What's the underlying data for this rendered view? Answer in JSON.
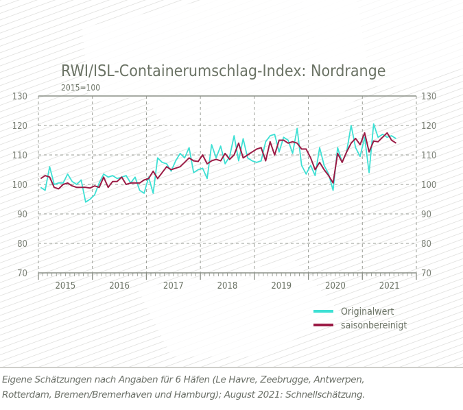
{
  "chart_data": {
    "type": "line",
    "title": "RWI/ISL-Containerumschlag-Index: Nordrange",
    "subtitle": "2015=100",
    "ylim": [
      70,
      130
    ],
    "yticks": [
      70,
      80,
      90,
      100,
      110,
      120,
      130
    ],
    "x_categories": [
      "2015",
      "2016",
      "2017",
      "2018",
      "2019",
      "2020",
      "2021"
    ],
    "x_range": [
      "2015-01",
      "2021-12"
    ],
    "frequency": "monthly",
    "grid": true,
    "legend_placement": "bottom-right",
    "series": [
      {
        "name": "Originalwert",
        "color": "#3ee0d4",
        "start": "2015-01",
        "values": [
          99,
          98,
          106,
          100,
          100.5,
          100.5,
          103.5,
          101,
          100,
          101.5,
          94,
          95,
          96.5,
          100.5,
          103.5,
          102.5,
          103,
          102,
          102.5,
          103,
          100.5,
          102.5,
          98,
          97,
          102.5,
          97,
          109,
          107.5,
          107,
          104.5,
          108,
          110.5,
          109,
          112.5,
          104,
          105,
          105.5,
          102,
          113.5,
          109,
          113,
          107,
          109.5,
          116.5,
          108,
          115.5,
          109,
          108,
          107.5,
          108,
          114.5,
          116.5,
          117,
          111,
          116,
          115,
          110.5,
          119,
          106.5,
          103.5,
          106.5,
          103,
          112.5,
          106.5,
          103.5,
          98,
          112.5,
          107.5,
          111,
          120,
          112.5,
          109.5,
          116,
          104,
          120.5,
          116,
          117,
          116,
          116.5,
          115.5
        ]
      },
      {
        "name": "saisonbereinigt",
        "color": "#9b1b45",
        "start": "2015-01",
        "values": [
          102,
          103,
          102.5,
          99,
          98.5,
          100,
          100.5,
          99.5,
          99,
          99,
          99,
          98.8,
          99.5,
          99,
          102.5,
          99,
          101,
          101,
          102.5,
          100,
          100.5,
          100.5,
          100.5,
          101.5,
          102,
          104.5,
          102,
          104,
          106,
          105,
          105.5,
          106,
          107.5,
          109,
          108,
          107.8,
          110,
          107,
          108,
          108.5,
          108,
          110.5,
          108.5,
          110,
          114,
          109,
          110,
          111,
          112,
          112.5,
          108,
          114.5,
          110,
          115,
          115,
          114,
          114.5,
          114,
          112,
          112,
          109,
          105,
          107.5,
          105,
          103,
          100.5,
          110.5,
          107.5,
          111,
          114,
          115.6,
          113.5,
          117.5,
          111,
          114.7,
          114.5,
          116,
          117.5,
          115,
          114
        ]
      }
    ]
  },
  "caption": {
    "line1": "Eigene Schätzungen nach Angaben für 6 Häfen (Le Havre, Zeebrugge, Antwerpen,",
    "line2": "Rotterdam, Bremen/Bremerhaven und Hamburg); August 2021: Schnellschätzung."
  }
}
